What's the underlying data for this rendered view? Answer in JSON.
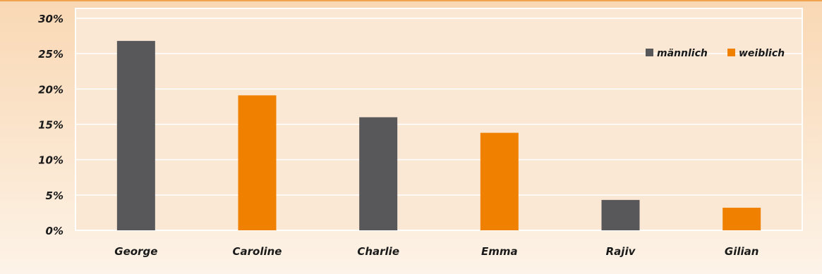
{
  "chart_data": {
    "type": "bar",
    "categories": [
      "George",
      "Caroline",
      "Charlie",
      "Emma",
      "Rajiv",
      "Gilian"
    ],
    "values": [
      26.8,
      19.1,
      16.0,
      13.8,
      4.3,
      3.2
    ],
    "bar_series": [
      "männlich",
      "weiblich",
      "männlich",
      "weiblich",
      "männlich",
      "weiblich"
    ],
    "series": [
      {
        "name": "männlich",
        "color": "#58585a"
      },
      {
        "name": "weiblich",
        "color": "#f08000"
      }
    ],
    "yticks": [
      0,
      5,
      10,
      15,
      20,
      25,
      30
    ],
    "ytick_labels": [
      "0%",
      "5%",
      "10%",
      "15%",
      "20%",
      "25%",
      "30%"
    ],
    "ylim": [
      0,
      30
    ],
    "grid": true,
    "legend": "top-right",
    "title": "",
    "xlabel": "",
    "ylabel": ""
  }
}
